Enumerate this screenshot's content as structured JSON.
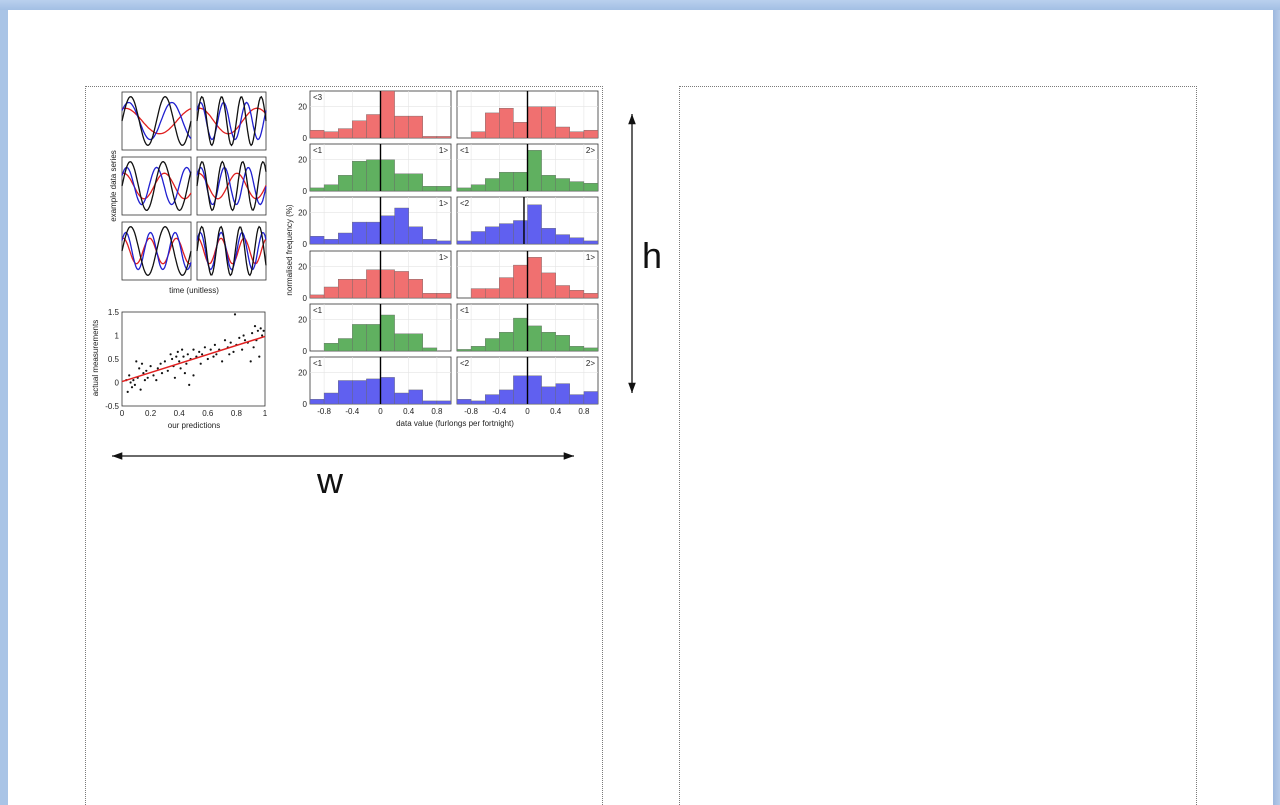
{
  "window": {
    "accent": "#a9c4e6",
    "page_color": "#ffffff"
  },
  "dimension_labels": {
    "width": "w",
    "height": "h"
  },
  "chart_data": [
    {
      "type": "line",
      "name_ref": "example-series-grid",
      "ylabel": "example data series",
      "xlabel": "time (unitless)",
      "colors": {
        "black": "#111111",
        "red": "#e02020",
        "blue": "#2020d0"
      },
      "panels": [
        {
          "black": [
            1,
            2.0
          ],
          "red": [
            1,
            1.0
          ],
          "blue": [
            1,
            1.6
          ]
        },
        {
          "black": [
            1,
            3.5
          ],
          "red": [
            1,
            1.2
          ],
          "blue": [
            1,
            3.0
          ]
        },
        {
          "black": [
            1,
            2.1
          ],
          "red": [
            1,
            1.7
          ],
          "blue": [
            1,
            2.3
          ]
        },
        {
          "black": [
            1,
            3.4
          ],
          "red": [
            1,
            1.8
          ],
          "blue": [
            1,
            2.9
          ]
        },
        {
          "black": [
            1,
            2.0
          ],
          "red": [
            1,
            2.6
          ],
          "blue": [
            1,
            2.8
          ]
        },
        {
          "black": [
            1,
            3.6
          ],
          "red": [
            1,
            3.0
          ],
          "blue": [
            1,
            3.3
          ]
        }
      ]
    },
    {
      "type": "scatter",
      "name_ref": "predictions-scatter",
      "xlabel": "our predictions",
      "ylabel": "actual measurements",
      "xlim": [
        0,
        1
      ],
      "ylim": [
        -0.5,
        1.5
      ],
      "xticks": [
        "0",
        "0.2",
        "0.4",
        "0.6",
        "0.8",
        "1"
      ],
      "yticks": [
        "-0.5",
        "0",
        "0.5",
        "1",
        "1.5"
      ],
      "fit_line": {
        "x": [
          0,
          1
        ],
        "y": [
          0.02,
          0.98
        ],
        "color": "#e02020"
      },
      "points": [
        [
          0.03,
          0.05
        ],
        [
          0.04,
          -0.2
        ],
        [
          0.05,
          0.15
        ],
        [
          0.06,
          0.0
        ],
        [
          0.07,
          -0.1
        ],
        [
          0.08,
          0.05
        ],
        [
          0.09,
          -0.05
        ],
        [
          0.1,
          0.45
        ],
        [
          0.11,
          0.1
        ],
        [
          0.12,
          0.3
        ],
        [
          0.13,
          -0.15
        ],
        [
          0.14,
          0.4
        ],
        [
          0.15,
          0.2
        ],
        [
          0.16,
          0.05
        ],
        [
          0.17,
          0.25
        ],
        [
          0.18,
          0.1
        ],
        [
          0.2,
          0.35
        ],
        [
          0.22,
          0.15
        ],
        [
          0.24,
          0.05
        ],
        [
          0.25,
          0.3
        ],
        [
          0.27,
          0.4
        ],
        [
          0.28,
          0.2
        ],
        [
          0.3,
          0.45
        ],
        [
          0.32,
          0.25
        ],
        [
          0.34,
          0.6
        ],
        [
          0.35,
          0.5
        ],
        [
          0.36,
          0.35
        ],
        [
          0.37,
          0.1
        ],
        [
          0.38,
          0.55
        ],
        [
          0.39,
          0.65
        ],
        [
          0.4,
          0.45
        ],
        [
          0.41,
          0.3
        ],
        [
          0.42,
          0.7
        ],
        [
          0.43,
          0.55
        ],
        [
          0.44,
          0.2
        ],
        [
          0.45,
          0.4
        ],
        [
          0.46,
          0.6
        ],
        [
          0.47,
          -0.05
        ],
        [
          0.48,
          0.5
        ],
        [
          0.5,
          0.15
        ],
        [
          0.5,
          0.7
        ],
        [
          0.52,
          0.55
        ],
        [
          0.54,
          0.65
        ],
        [
          0.55,
          0.4
        ],
        [
          0.56,
          0.6
        ],
        [
          0.58,
          0.75
        ],
        [
          0.6,
          0.5
        ],
        [
          0.62,
          0.7
        ],
        [
          0.64,
          0.55
        ],
        [
          0.65,
          0.8
        ],
        [
          0.66,
          0.6
        ],
        [
          0.68,
          0.7
        ],
        [
          0.7,
          0.45
        ],
        [
          0.72,
          0.9
        ],
        [
          0.74,
          0.75
        ],
        [
          0.75,
          0.6
        ],
        [
          0.76,
          0.85
        ],
        [
          0.78,
          0.65
        ],
        [
          0.79,
          1.45
        ],
        [
          0.8,
          0.8
        ],
        [
          0.82,
          0.95
        ],
        [
          0.84,
          0.7
        ],
        [
          0.85,
          1.0
        ],
        [
          0.86,
          0.9
        ],
        [
          0.88,
          0.85
        ],
        [
          0.9,
          0.45
        ],
        [
          0.91,
          1.05
        ],
        [
          0.92,
          0.75
        ],
        [
          0.93,
          1.2
        ],
        [
          0.94,
          0.9
        ],
        [
          0.95,
          1.1
        ],
        [
          0.96,
          0.55
        ],
        [
          0.97,
          1.15
        ],
        [
          0.98,
          1.0
        ],
        [
          0.99,
          1.1
        ]
      ]
    },
    {
      "type": "bar",
      "name_ref": "histogram-grid",
      "ylabel": "normalised frequency (%)",
      "xlabel": "data value (furlongs per fortnight)",
      "xlim": [
        -1,
        1
      ],
      "ylim": [
        0,
        30
      ],
      "xticks": [
        "-0.8",
        "-0.4",
        "0",
        "0.4",
        "0.8"
      ],
      "yticks": [
        "0",
        "20"
      ],
      "bin_width": 0.2,
      "bin_centers": [
        -0.9,
        -0.7,
        -0.5,
        -0.3,
        -0.1,
        0.1,
        0.3,
        0.5,
        0.7,
        0.9
      ],
      "panels": [
        {
          "color": "#f07070",
          "values": [
            5,
            4,
            6,
            11,
            15,
            32,
            14,
            14,
            1,
            1
          ],
          "marker": 0.0,
          "left": "<3",
          "right": ""
        },
        {
          "color": "#f07070",
          "values": [
            0,
            4,
            16,
            19,
            10,
            20,
            20,
            7,
            4,
            5
          ],
          "marker": 0.0,
          "left": "",
          "right": ""
        },
        {
          "color": "#60b060",
          "values": [
            2,
            4,
            10,
            19,
            20,
            20,
            11,
            11,
            3,
            3
          ],
          "marker": 0.0,
          "left": "<1",
          "right": "1>"
        },
        {
          "color": "#60b060",
          "values": [
            2,
            4,
            8,
            12,
            12,
            26,
            10,
            8,
            6,
            5
          ],
          "marker": 0.0,
          "left": "<1",
          "right": "2>"
        },
        {
          "color": "#6060f0",
          "values": [
            5,
            3,
            7,
            14,
            14,
            18,
            23,
            11,
            3,
            2
          ],
          "marker": 0.0,
          "left": "",
          "right": "1>"
        },
        {
          "color": "#6060f0",
          "values": [
            2,
            8,
            11,
            13,
            15,
            25,
            10,
            6,
            4,
            2
          ],
          "marker": -0.05,
          "left": "<2",
          "right": ""
        },
        {
          "color": "#f07070",
          "values": [
            2,
            7,
            12,
            12,
            18,
            18,
            17,
            12,
            3,
            3
          ],
          "marker": 0.0,
          "left": "",
          "right": "1>"
        },
        {
          "color": "#f07070",
          "values": [
            0,
            6,
            6,
            13,
            21,
            26,
            16,
            8,
            5,
            3
          ],
          "marker": 0.0,
          "left": "",
          "right": "1>"
        },
        {
          "color": "#60b060",
          "values": [
            0,
            5,
            8,
            17,
            17,
            23,
            11,
            11,
            2,
            0
          ],
          "marker": 0.0,
          "left": "<1",
          "right": ""
        },
        {
          "color": "#60b060",
          "values": [
            1,
            3,
            8,
            12,
            21,
            16,
            12,
            10,
            3,
            2
          ],
          "marker": 0.0,
          "left": "<1",
          "right": ""
        },
        {
          "color": "#6060f0",
          "values": [
            3,
            7,
            15,
            15,
            16,
            17,
            7,
            9,
            2,
            2
          ],
          "marker": 0.0,
          "left": "<1",
          "right": ""
        },
        {
          "color": "#6060f0",
          "values": [
            3,
            2,
            6,
            9,
            18,
            18,
            11,
            13,
            6,
            8
          ],
          "marker": 0.0,
          "left": "<2",
          "right": "2>"
        }
      ]
    }
  ]
}
